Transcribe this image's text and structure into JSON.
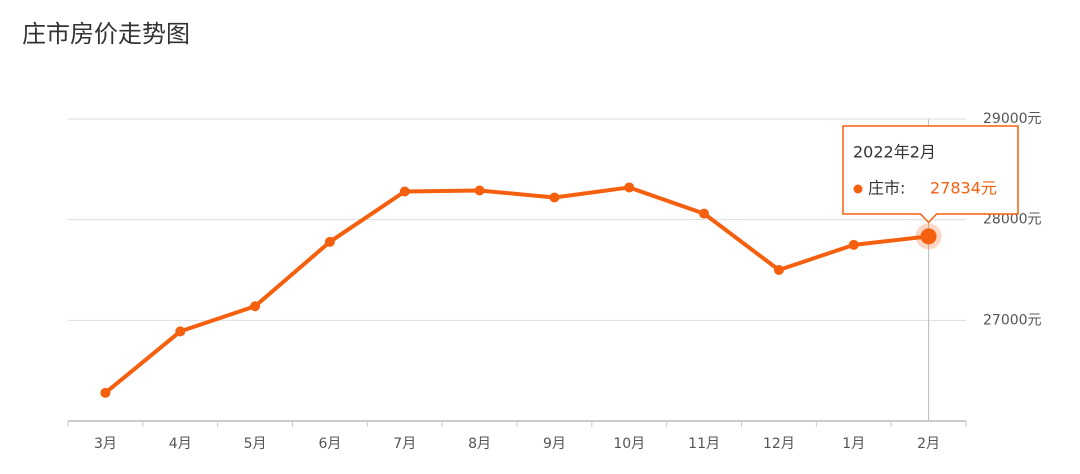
{
  "chart_data": {
    "type": "line",
    "title": "庄市房价走势图",
    "categories": [
      "3月",
      "4月",
      "5月",
      "6月",
      "7月",
      "8月",
      "9月",
      "10月",
      "11月",
      "12月",
      "1月",
      "2月"
    ],
    "series": [
      {
        "name": "庄市",
        "color": "#f5600f",
        "values": [
          26280,
          26890,
          27140,
          27780,
          28280,
          28290,
          28220,
          28320,
          28060,
          27500,
          27750,
          27834
        ]
      }
    ],
    "ylim": [
      26000,
      29000
    ],
    "yticks": [
      {
        "value": 27000,
        "label": "27000元"
      },
      {
        "value": 28000,
        "label": "28000元"
      },
      {
        "value": 29000,
        "label": "29000元"
      }
    ],
    "grid": true,
    "tooltip": {
      "title": "2022年2月",
      "name": "庄市:",
      "value_label": "27834元"
    }
  }
}
